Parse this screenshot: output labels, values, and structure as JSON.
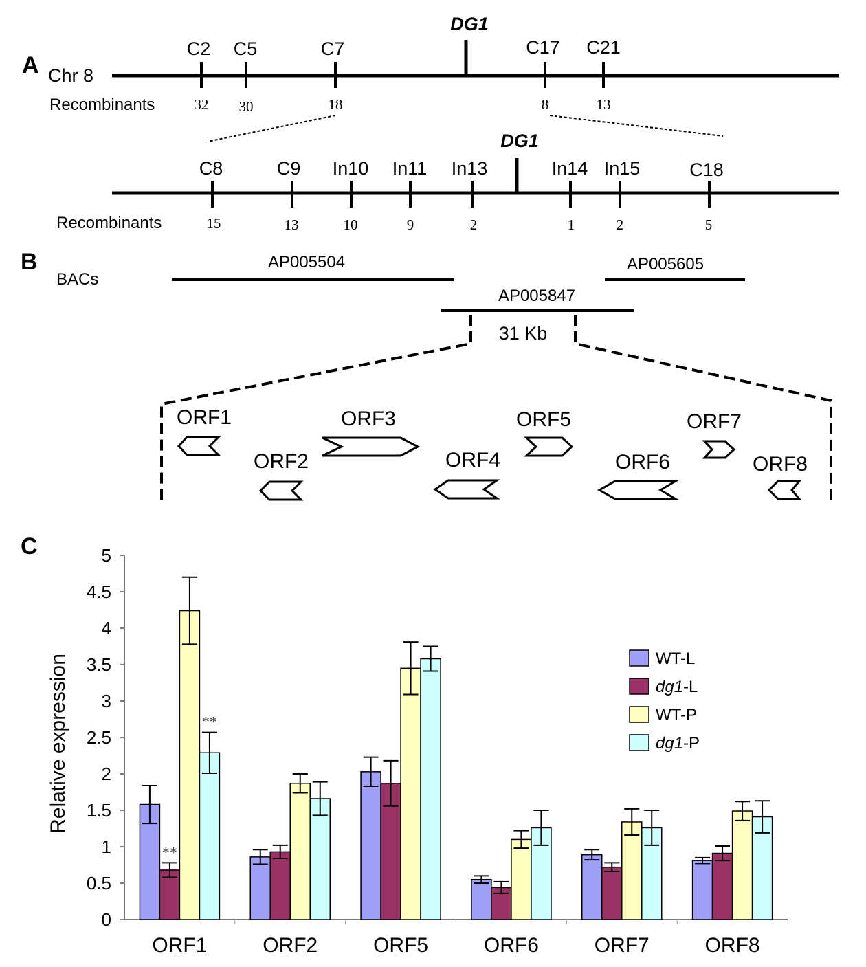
{
  "panels": {
    "a": "A",
    "b": "B",
    "c": "C"
  },
  "map_top": {
    "chromosome_label": "Chr 8",
    "gene_label": "DG1",
    "recombinants_label": "Recombinants",
    "markers": [
      {
        "name": "C2",
        "count": "32"
      },
      {
        "name": "C5",
        "count": "30"
      },
      {
        "name": "C7",
        "count": "18"
      },
      {
        "name": "C17",
        "count": "8"
      },
      {
        "name": "C21",
        "count": "13"
      }
    ]
  },
  "map_fine": {
    "gene_label": "DG1",
    "recombinants_label": "Recombinants",
    "markers": [
      {
        "name": "C8",
        "count": "15"
      },
      {
        "name": "C9",
        "count": "13"
      },
      {
        "name": "In10",
        "count": "10"
      },
      {
        "name": "In11",
        "count": "9"
      },
      {
        "name": "In13",
        "count": "2"
      },
      {
        "name": "In14",
        "count": "1"
      },
      {
        "name": "In15",
        "count": "2"
      },
      {
        "name": "C18",
        "count": "5"
      }
    ]
  },
  "bacs": {
    "label": "BACs",
    "clones": [
      "AP005504",
      "AP005605",
      "AP005847"
    ],
    "interval_label": "31 Kb"
  },
  "orfs": [
    "ORF1",
    "ORF2",
    "ORF3",
    "ORF4",
    "ORF5",
    "ORF6",
    "ORF7",
    "ORF8"
  ],
  "legend": [
    {
      "italic": "",
      "suffix": "WT-L",
      "color": "#a0a0f8"
    },
    {
      "italic": "dg1",
      "suffix": "-L",
      "color": "#993366"
    },
    {
      "italic": "",
      "suffix": "WT-P",
      "color": "#ffffc0"
    },
    {
      "italic": "dg1",
      "suffix": "-P",
      "color": "#ccffff"
    }
  ],
  "chart_data": {
    "type": "bar",
    "title": "",
    "xlabel": "",
    "ylabel": "Relative expression",
    "ylim": [
      0,
      5
    ],
    "yticks": [
      "0",
      "0.5",
      "1",
      "1.5",
      "2",
      "2.5",
      "3",
      "3.5",
      "4",
      "4.5",
      "5"
    ],
    "categories": [
      "ORF1",
      "ORF2",
      "ORF5",
      "ORF6",
      "ORF7",
      "ORF8"
    ],
    "series": [
      {
        "name": "WT-L",
        "color": "#a0a0f8",
        "values": [
          1.58,
          0.86,
          2.03,
          0.55,
          0.89,
          0.81
        ],
        "errors": [
          0.26,
          0.1,
          0.2,
          0.05,
          0.07,
          0.04
        ],
        "marks": [
          "",
          "",
          "",
          "",
          "",
          ""
        ]
      },
      {
        "name": "dg1-L",
        "color": "#993366",
        "values": [
          0.68,
          0.93,
          1.87,
          0.44,
          0.72,
          0.91
        ],
        "errors": [
          0.1,
          0.09,
          0.31,
          0.08,
          0.06,
          0.1
        ],
        "marks": [
          "**",
          "",
          "",
          "",
          "",
          ""
        ]
      },
      {
        "name": "WT-P",
        "color": "#ffffc0",
        "values": [
          4.24,
          1.87,
          3.45,
          1.1,
          1.34,
          1.49
        ],
        "errors": [
          0.46,
          0.13,
          0.36,
          0.12,
          0.18,
          0.13
        ],
        "marks": [
          "",
          "",
          "",
          "",
          "",
          ""
        ]
      },
      {
        "name": "dg1-P",
        "color": "#ccffff",
        "values": [
          2.29,
          1.66,
          3.58,
          1.26,
          1.26,
          1.41
        ],
        "errors": [
          0.28,
          0.23,
          0.17,
          0.24,
          0.24,
          0.22
        ],
        "marks": [
          "**",
          "",
          "",
          "",
          "",
          ""
        ]
      }
    ]
  }
}
